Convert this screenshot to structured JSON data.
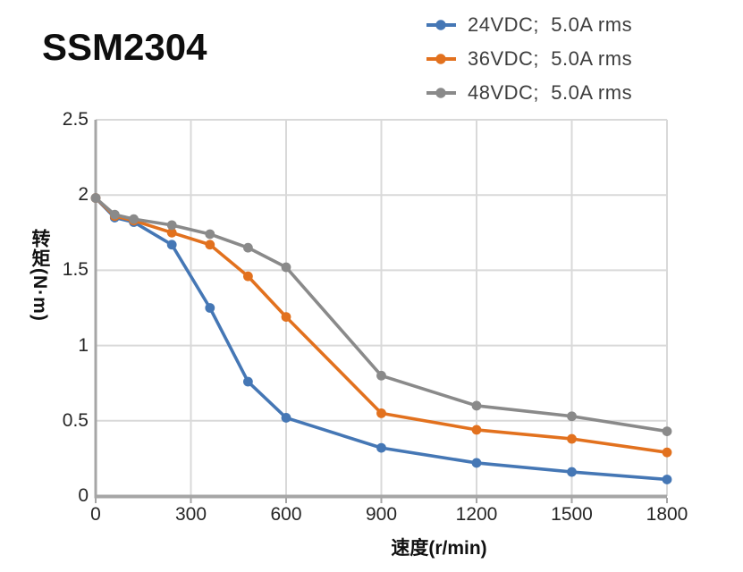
{
  "title": "SSM2304",
  "style": {
    "grid_color": "#D9D9D9",
    "axis_color": "#A6A6A6",
    "tick_text_color": "#262626",
    "legend_text_color": "#3E3E3E",
    "title_color": "#0E0E0E"
  },
  "chart_data": {
    "type": "line",
    "title": "SSM2304",
    "xlabel": "速度(r/min)",
    "ylabel": "转矩(N·m)",
    "xlim": [
      0,
      1800
    ],
    "ylim": [
      0,
      2.5
    ],
    "x_ticks": [
      0,
      300,
      600,
      900,
      1200,
      1500,
      1800
    ],
    "y_ticks": [
      0,
      0.5,
      1,
      1.5,
      2,
      2.5
    ],
    "grid": true,
    "legend_position": "top-right",
    "marker": "circle",
    "x": [
      0,
      60,
      120,
      240,
      360,
      480,
      600,
      900,
      1200,
      1500,
      1800
    ],
    "series": [
      {
        "name": "24VDC;  5.0A rms",
        "color": "#4577B5",
        "values": [
          1.98,
          1.85,
          1.82,
          1.67,
          1.25,
          0.76,
          0.52,
          0.32,
          0.22,
          0.16,
          0.11
        ]
      },
      {
        "name": "36VDC;  5.0A rms",
        "color": "#E2711E",
        "values": [
          1.98,
          1.86,
          1.83,
          1.75,
          1.67,
          1.46,
          1.19,
          0.55,
          0.44,
          0.38,
          0.29
        ]
      },
      {
        "name": "48VDC;  5.0A rms",
        "color": "#8A8A8A",
        "values": [
          1.98,
          1.87,
          1.84,
          1.8,
          1.74,
          1.65,
          1.52,
          0.8,
          0.6,
          0.53,
          0.43
        ]
      }
    ]
  }
}
